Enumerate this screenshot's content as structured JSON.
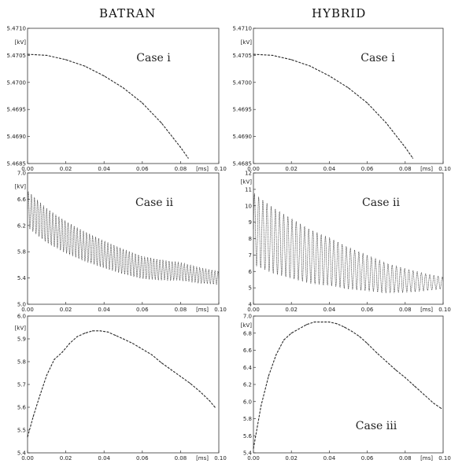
{
  "column_headers": [
    "BATRAN",
    "HYBRID"
  ],
  "chart_data": [
    {
      "type": "line",
      "column": "BATRAN",
      "annotation": "Case i",
      "ylabel": "[kV]",
      "xlabel": "[ms]",
      "xlim": [
        0,
        0.1
      ],
      "ylim": [
        5.4685,
        5.471
      ],
      "x_ticks": [
        "0.00",
        "0.02",
        "0.04",
        "0.06",
        "0.08",
        "0.10"
      ],
      "y_ticks": [
        "5.4710",
        "5.4705",
        "5.4700",
        "5.4695",
        "5.4690",
        "5.4685"
      ],
      "series": [
        {
          "x": [
            0.0,
            0.01,
            0.02,
            0.03,
            0.04,
            0.05,
            0.06,
            0.07,
            0.08,
            0.084
          ],
          "y": [
            5.47052,
            5.4705,
            5.47042,
            5.4703,
            5.47012,
            5.4699,
            5.46962,
            5.46925,
            5.4688,
            5.4686
          ]
        }
      ]
    },
    {
      "type": "line",
      "column": "HYBRID",
      "annotation": "Case i",
      "ylabel": "[kV]",
      "xlabel": "[ms]",
      "xlim": [
        0,
        0.1
      ],
      "ylim": [
        5.4685,
        5.471
      ],
      "x_ticks": [
        "0.00",
        "0.02",
        "0.04",
        "0.06",
        "0.08",
        "0.10"
      ],
      "y_ticks": [
        "5.4710",
        "5.4705",
        "5.4700",
        "5.4695",
        "5.4690",
        "5.4685"
      ],
      "series": [
        {
          "x": [
            0.0,
            0.01,
            0.02,
            0.03,
            0.04,
            0.05,
            0.06,
            0.07,
            0.08,
            0.084
          ],
          "y": [
            5.47052,
            5.4705,
            5.47042,
            5.4703,
            5.47012,
            5.4699,
            5.46962,
            5.46925,
            5.4688,
            5.4686
          ]
        }
      ]
    },
    {
      "type": "line",
      "column": "BATRAN",
      "annotation": "Case ii",
      "ylabel": "[kV]",
      "xlabel": "[ms]",
      "xlim": [
        0,
        0.1
      ],
      "ylim": [
        5.0,
        7.0
      ],
      "x_ticks": [
        "0.00",
        "0.02",
        "0.04",
        "0.06",
        "0.08",
        "0.10"
      ],
      "y_ticks": [
        "7.0",
        "6.6",
        "6.2",
        "5.8",
        "5.4",
        "5.0"
      ],
      "oscillation": {
        "period_ms": 0.0016,
        "amplitude_start": 0.28,
        "amplitude_end": 0.1
      },
      "series": [
        {
          "x": [
            0.0,
            0.01,
            0.02,
            0.03,
            0.04,
            0.05,
            0.06,
            0.07,
            0.08,
            0.09,
            0.1
          ],
          "y": [
            6.45,
            6.2,
            6.02,
            5.88,
            5.76,
            5.65,
            5.56,
            5.52,
            5.5,
            5.44,
            5.4
          ]
        }
      ]
    },
    {
      "type": "line",
      "column": "HYBRID",
      "annotation": "Case ii",
      "ylabel": "[kV]",
      "xlabel": "[ms]",
      "xlim": [
        0,
        0.1
      ],
      "ylim": [
        4,
        12
      ],
      "x_ticks": [
        "0.00",
        "0.02",
        "0.04",
        "0.06",
        "0.08",
        "0.10"
      ],
      "y_ticks": [
        "12",
        "11",
        "10",
        "9",
        "8",
        "7",
        "6",
        "5",
        "4"
      ],
      "oscillation": {
        "period_ms": 0.0022,
        "amplitude_start": 2.2,
        "amplitude_end": 0.35
      },
      "series": [
        {
          "x": [
            0.0,
            0.01,
            0.02,
            0.03,
            0.04,
            0.05,
            0.06,
            0.07,
            0.08,
            0.09,
            0.1
          ],
          "y": [
            8.6,
            7.9,
            7.4,
            6.9,
            6.6,
            6.2,
            5.9,
            5.6,
            5.45,
            5.35,
            5.3
          ]
        }
      ]
    },
    {
      "type": "line",
      "column": "BATRAN",
      "annotation": "",
      "ylabel": "[kV]",
      "xlabel": "[ms]",
      "xlim": [
        0,
        0.1
      ],
      "ylim": [
        5.4,
        6.0
      ],
      "x_ticks": [
        "0.00",
        "0.02",
        "0.04",
        "0.06",
        "0.08",
        "0.10"
      ],
      "y_ticks": [
        "6.0",
        "5.9",
        "5.8",
        "5.7",
        "5.6",
        "5.5",
        "5.4"
      ],
      "series": [
        {
          "x": [
            0.0,
            0.003,
            0.006,
            0.01,
            0.014,
            0.018,
            0.022,
            0.026,
            0.03,
            0.034,
            0.038,
            0.042,
            0.046,
            0.05,
            0.055,
            0.06,
            0.065,
            0.07,
            0.075,
            0.08,
            0.085,
            0.09,
            0.095,
            0.098
          ],
          "y": [
            5.47,
            5.56,
            5.64,
            5.74,
            5.81,
            5.84,
            5.88,
            5.91,
            5.925,
            5.935,
            5.935,
            5.93,
            5.915,
            5.9,
            5.88,
            5.855,
            5.83,
            5.795,
            5.765,
            5.735,
            5.705,
            5.67,
            5.63,
            5.6
          ]
        }
      ]
    },
    {
      "type": "line",
      "column": "HYBRID",
      "annotation": "Case iii",
      "ylabel": "[kV]",
      "xlabel": "[ms]",
      "xlim": [
        0,
        0.1
      ],
      "ylim": [
        5.4,
        7.0
      ],
      "x_ticks": [
        "0.00",
        "0.02",
        "0.04",
        "0.06",
        "0.08",
        "0.10"
      ],
      "y_ticks": [
        "7.0",
        "6.8",
        "6.6",
        "6.4",
        "6.2",
        "6.0",
        "5.8",
        "5.6",
        "5.4"
      ],
      "series": [
        {
          "x": [
            0.0,
            0.004,
            0.008,
            0.012,
            0.016,
            0.02,
            0.024,
            0.028,
            0.032,
            0.036,
            0.04,
            0.044,
            0.048,
            0.052,
            0.056,
            0.06,
            0.065,
            0.07,
            0.075,
            0.08,
            0.085,
            0.09,
            0.095,
            0.099
          ],
          "y": [
            5.45,
            5.95,
            6.3,
            6.55,
            6.72,
            6.8,
            6.85,
            6.9,
            6.93,
            6.93,
            6.93,
            6.91,
            6.87,
            6.82,
            6.76,
            6.68,
            6.57,
            6.47,
            6.37,
            6.28,
            6.18,
            6.08,
            5.98,
            5.92
          ]
        }
      ]
    }
  ]
}
